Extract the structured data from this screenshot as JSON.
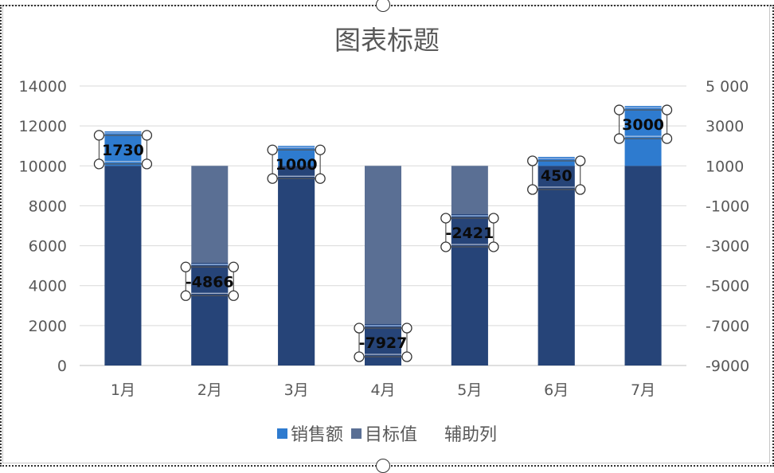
{
  "chart_data": {
    "type": "bar",
    "title": "图表标题",
    "categories": [
      "1月",
      "2月",
      "3月",
      "4月",
      "5月",
      "6月",
      "7月"
    ],
    "series": [
      {
        "name": "销售额",
        "values": [
          11730,
          5134,
          11000,
          2073,
          7579,
          10450,
          13000
        ],
        "color": "#2E7BCF"
      },
      {
        "name": "目标值",
        "values": [
          10000,
          10000,
          10000,
          10000,
          10000,
          10000,
          10000
        ],
        "color": "#5A6F94"
      },
      {
        "name": "辅助列",
        "values": [
          1730,
          -4866,
          1000,
          -7927,
          -2421,
          450,
          3000
        ],
        "color": "transparent"
      }
    ],
    "data_labels": [
      "1730",
      "-4866",
      "1000",
      "-7927",
      "-2421",
      "450",
      "3000"
    ],
    "ylim": [
      0,
      14000
    ],
    "yticks": [
      "0",
      "2000",
      "4000",
      "6000",
      "8000",
      "10000",
      "12000",
      "14000"
    ],
    "y2lim": [
      -9000,
      5000
    ],
    "y2ticks": [
      "-9000",
      "-7000",
      "-5000",
      "-3000",
      "-1000",
      "1000",
      "3000",
      "5 000"
    ],
    "bar_color_dark": "#264478",
    "grid": true,
    "legend_position": "bottom"
  }
}
